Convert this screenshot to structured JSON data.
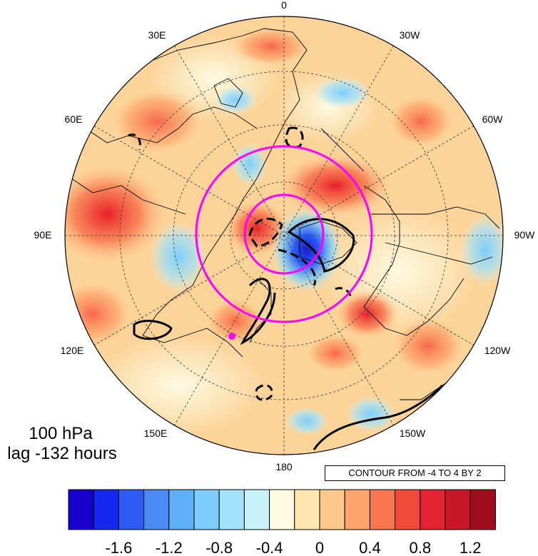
{
  "map": {
    "projection": "north-polar-stereographic",
    "longitude_labels": [
      {
        "text": "0",
        "lon": 0
      },
      {
        "text": "30W",
        "lon": -30
      },
      {
        "text": "60W",
        "lon": -60
      },
      {
        "text": "90W",
        "lon": -90
      },
      {
        "text": "120W",
        "lon": -120
      },
      {
        "text": "150W",
        "lon": -150
      },
      {
        "text": "180",
        "lon": 180
      },
      {
        "text": "150E",
        "lon": 150
      },
      {
        "text": "120E",
        "lon": 120
      },
      {
        "text": "90E",
        "lon": 90
      },
      {
        "text": "60E",
        "lon": 60
      },
      {
        "text": "30E",
        "lon": 30
      }
    ],
    "colors": {
      "contour_lines": "#000000",
      "reference_circles": "#ff00ff",
      "marker": "#ff00ff"
    }
  },
  "annotations": {
    "level": "100 hPa",
    "lag": "lag -132 hours",
    "contour_info": "CONTOUR FROM -4 TO 4 BY 2"
  },
  "colorbar": {
    "colors": [
      "#1a00d0",
      "#1428f0",
      "#2c5cf5",
      "#4a8af5",
      "#60b0f8",
      "#7ccdfa",
      "#a2e2fb",
      "#c8f2fa",
      "#fdfbe2",
      "#fde6b0",
      "#fcc98a",
      "#fca56a",
      "#f9764e",
      "#f24a3a",
      "#e32330",
      "#c81726",
      "#a00c1e"
    ],
    "tick_labels": [
      "-1.6",
      "-1.2",
      "-0.8",
      "-0.4",
      "0",
      "0.4",
      "0.8",
      "1.2"
    ]
  }
}
